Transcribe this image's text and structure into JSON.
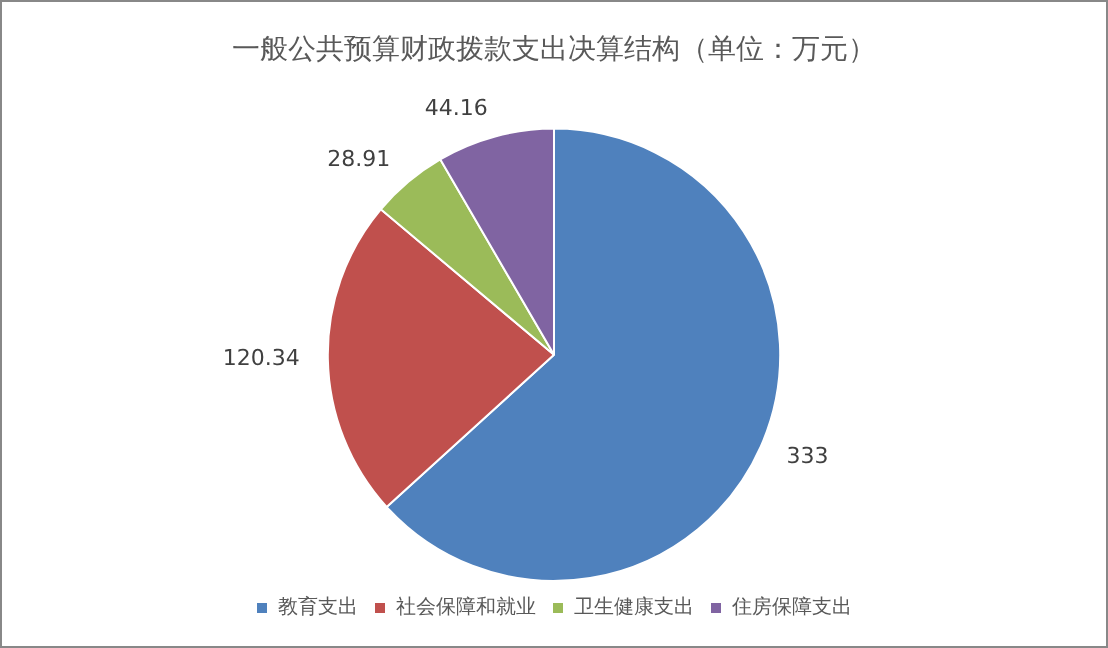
{
  "chart_data": {
    "type": "pie",
    "title": "一般公共预算财政拨款支出决算结构（单位：万元）",
    "categories": [
      "教育支出",
      "社会保障和就业",
      "卫生健康支出",
      "住房保障支出"
    ],
    "values": [
      333,
      120.34,
      28.91,
      44.16
    ],
    "colors": [
      "#4f81bd",
      "#c0504d",
      "#9bbb59",
      "#8064a2"
    ],
    "data_labels": true,
    "legend": "bottom"
  }
}
